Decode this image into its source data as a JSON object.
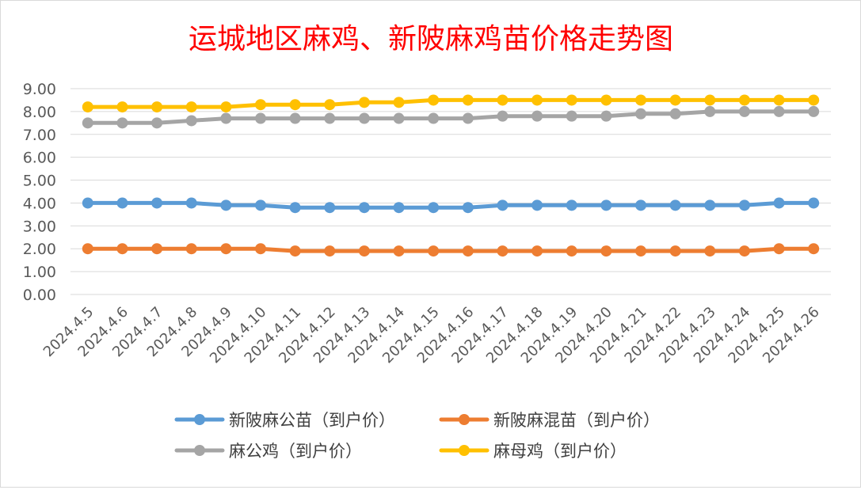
{
  "chart_data": {
    "type": "line",
    "title": "运城地区麻鸡、新陂麻鸡苗价格走势图",
    "xlabel": "",
    "ylabel": "",
    "ylim": [
      0,
      9
    ],
    "y_ticks": [
      "0.00",
      "1.00",
      "2.00",
      "3.00",
      "4.00",
      "5.00",
      "6.00",
      "7.00",
      "8.00",
      "9.00"
    ],
    "grid": true,
    "legend_position": "bottom",
    "categories": [
      "2024.4.5",
      "2024.4.6",
      "2024.4.7",
      "2024.4.8",
      "2024.4.9",
      "2024.4.10",
      "2024.4.11",
      "2024.4.12",
      "2024.4.13",
      "2024.4.14",
      "2024.4.15",
      "2024.4.16",
      "2024.4.17",
      "2024.4.18",
      "2024.4.19",
      "2024.4.20",
      "2024.4.21",
      "2024.4.22",
      "2024.4.23",
      "2024.4.24",
      "2024.4.25",
      "2024.4.26"
    ],
    "series": [
      {
        "name": "新陂麻公苗（到户价）",
        "color": "#5B9BD5",
        "values": [
          4.0,
          4.0,
          4.0,
          4.0,
          3.9,
          3.9,
          3.8,
          3.8,
          3.8,
          3.8,
          3.8,
          3.8,
          3.9,
          3.9,
          3.9,
          3.9,
          3.9,
          3.9,
          3.9,
          3.9,
          4.0,
          4.0
        ]
      },
      {
        "name": "新陂麻混苗（到户价）",
        "color": "#ED7D31",
        "values": [
          2.0,
          2.0,
          2.0,
          2.0,
          2.0,
          2.0,
          1.9,
          1.9,
          1.9,
          1.9,
          1.9,
          1.9,
          1.9,
          1.9,
          1.9,
          1.9,
          1.9,
          1.9,
          1.9,
          1.9,
          2.0,
          2.0
        ]
      },
      {
        "name": "麻公鸡（到户价）",
        "color": "#A5A5A5",
        "values": [
          7.5,
          7.5,
          7.5,
          7.6,
          7.7,
          7.7,
          7.7,
          7.7,
          7.7,
          7.7,
          7.7,
          7.7,
          7.8,
          7.8,
          7.8,
          7.8,
          7.9,
          7.9,
          8.0,
          8.0,
          8.0,
          8.0
        ]
      },
      {
        "name": "麻母鸡（到户价）",
        "color": "#FFC000",
        "values": [
          8.2,
          8.2,
          8.2,
          8.2,
          8.2,
          8.3,
          8.3,
          8.3,
          8.4,
          8.4,
          8.5,
          8.5,
          8.5,
          8.5,
          8.5,
          8.5,
          8.5,
          8.5,
          8.5,
          8.5,
          8.5,
          8.5
        ]
      }
    ],
    "title_color": "#FF0000",
    "gridline_color": "#D9D9D9",
    "tick_label_color": "#595959"
  }
}
